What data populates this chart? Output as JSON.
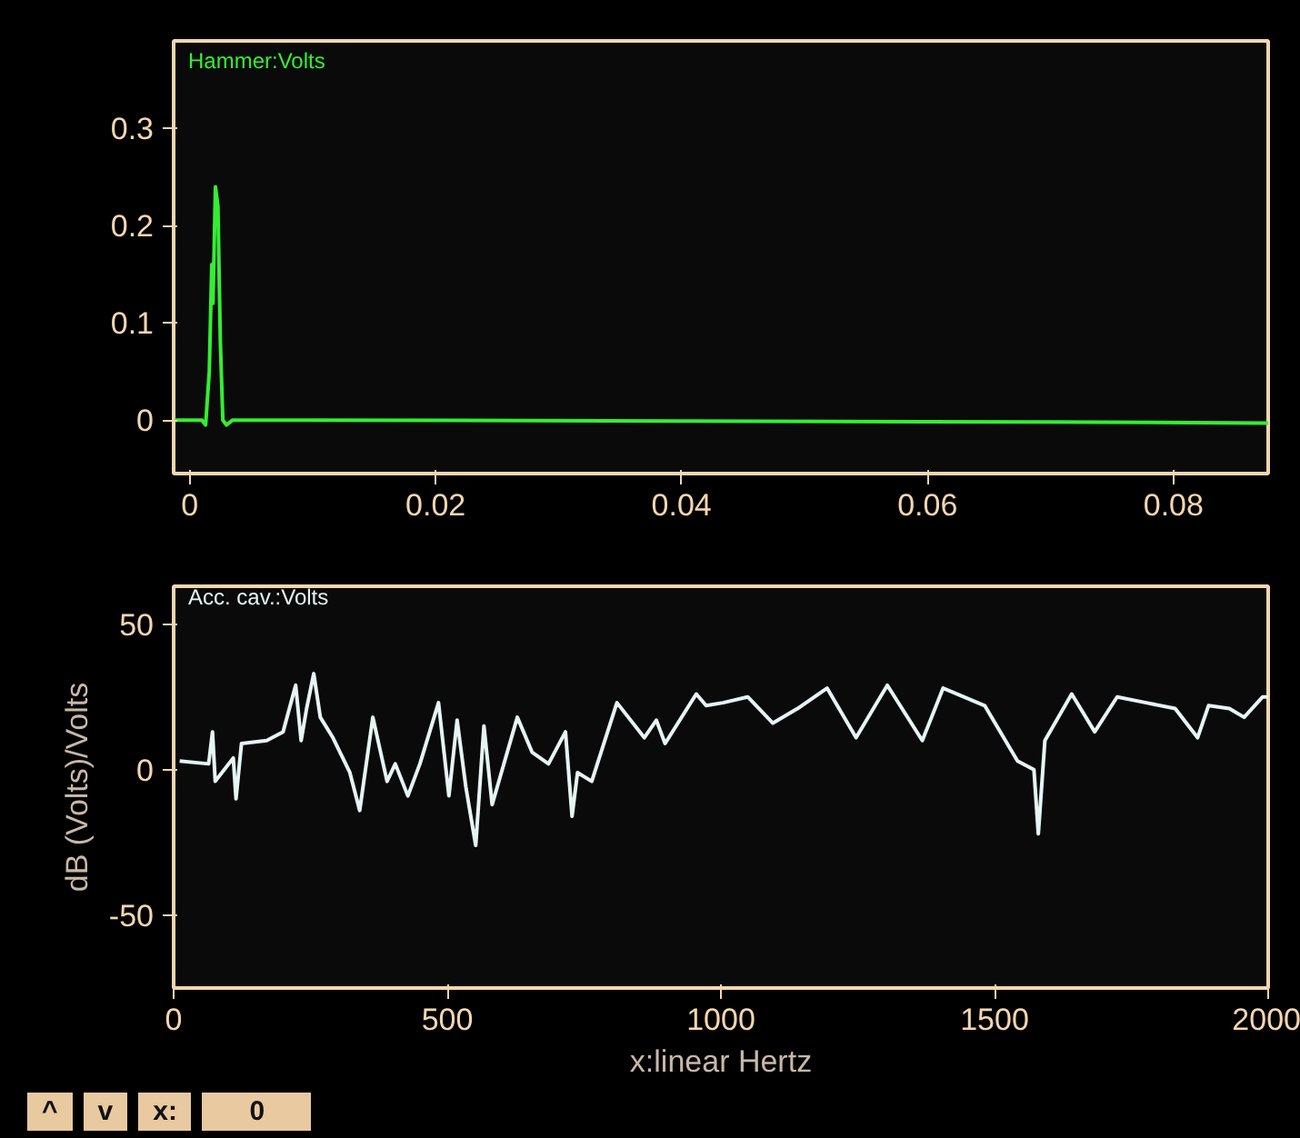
{
  "chart_data": [
    {
      "type": "line",
      "xlim": [
        -0.0013,
        0.0877
      ],
      "ylim": [
        -0.055,
        0.39
      ],
      "xticks": [
        0,
        0.02,
        0.04,
        0.06,
        0.08
      ],
      "yticks": [
        0,
        0.1,
        0.2,
        0.3
      ],
      "series": [
        {
          "name": "Hammer:Volts",
          "color": "#33ee33",
          "x": [
            -0.0013,
            0.0,
            0.001,
            0.0013,
            0.0016,
            0.0018,
            0.0019,
            0.0021,
            0.0023,
            0.0025,
            0.0027,
            0.003,
            0.0035,
            0.01,
            0.04,
            0.07,
            0.0877
          ],
          "values": [
            0,
            0,
            0,
            -0.005,
            0.05,
            0.16,
            0.12,
            0.24,
            0.22,
            0.08,
            0.0,
            -0.005,
            0,
            0,
            -0.001,
            -0.002,
            -0.003
          ]
        }
      ]
    },
    {
      "type": "line",
      "xlim": [
        0,
        2000
      ],
      "ylim": [
        -75,
        63
      ],
      "xticks": [
        0,
        500,
        1000,
        1500,
        2000
      ],
      "yticks": [
        -50,
        0,
        50
      ],
      "xlabel": "x:linear Hertz",
      "ylabel": "dB (Volts)/Volts",
      "annotations": [
        "^",
        "v",
        "x:",
        "0"
      ],
      "series": [
        {
          "name": "Acc. cav.:Volts",
          "color": "#e6f4f4",
          "x": [
            11,
            64,
            71,
            76,
            109,
            114,
            124,
            170,
            200,
            223,
            233,
            243,
            256,
            268,
            291,
            322,
            340,
            364,
            390,
            405,
            428,
            450,
            484,
            503,
            518,
            534,
            552,
            567,
            582,
            628,
            655,
            685,
            716,
            728,
            738,
            764,
            810,
            860,
            882,
            898,
            955,
            973,
            1004,
            1049,
            1095,
            1140,
            1194,
            1247,
            1304,
            1368,
            1406,
            1482,
            1542,
            1572,
            1580,
            1592,
            1641,
            1683,
            1724,
            1777,
            1830,
            1871,
            1891,
            1929,
            1956,
            1990,
            2000
          ],
          "values": [
            3,
            2,
            13,
            -4,
            4,
            -10,
            9,
            10,
            13,
            29,
            10,
            21,
            33,
            18,
            11,
            -1,
            -14,
            18,
            -4,
            2,
            -9,
            2,
            23,
            -9,
            17,
            -6,
            -26,
            15,
            -12,
            18,
            6,
            2,
            13,
            -16,
            -1,
            -4,
            23,
            11,
            17,
            9,
            26,
            22,
            23,
            25,
            16,
            21,
            28,
            11,
            29,
            10,
            28,
            22,
            3,
            0,
            -22,
            10,
            26,
            13,
            25,
            23,
            21,
            11,
            22,
            21,
            18,
            25,
            25
          ]
        }
      ]
    }
  ]
}
